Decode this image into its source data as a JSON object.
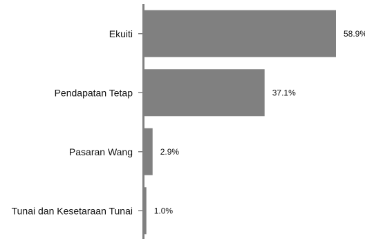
{
  "chart_data": {
    "type": "bar",
    "orientation": "horizontal",
    "categories": [
      "Ekuiti",
      "Pendapatan Tetap",
      "Pasaran Wang",
      "Tunai dan Kesetaraan Tunai"
    ],
    "values": [
      58.9,
      37.1,
      2.9,
      1.0
    ],
    "value_labels": [
      "58.9%",
      "37.1%",
      "2.9%",
      "1.0%"
    ],
    "xlim": [
      0,
      60
    ],
    "title": "",
    "xlabel": "",
    "ylabel": "",
    "grid": false,
    "bar_color": "#808080",
    "axis_color": "#808080"
  }
}
